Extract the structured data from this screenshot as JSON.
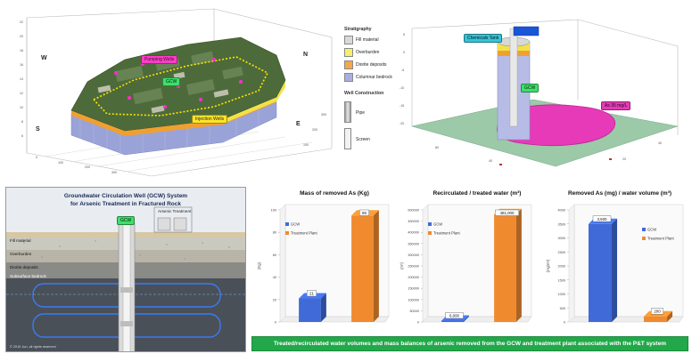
{
  "top_left": {
    "compass": {
      "w": "W",
      "n": "N",
      "s": "S",
      "e": "E"
    },
    "tags": {
      "pumping": "Pumping Wells",
      "gcw": "GCW",
      "injection": "Injection Wells"
    },
    "colors": {
      "surface_green": "#4d6b3a",
      "bedrock": "#9aa3d8",
      "layer_yellow": "#f2e24a",
      "layer_orange": "#f0a030"
    }
  },
  "legend": {
    "stratigraphy_title": "Stratigraphy",
    "strata": [
      {
        "label": "Fill material",
        "color": "#d9d9d9"
      },
      {
        "label": "Overburden",
        "color": "#f6ef6a"
      },
      {
        "label": "Diorite deposits",
        "color": "#f4a64a"
      },
      {
        "label": "Columnar bedrock",
        "color": "#a9aee0"
      }
    ],
    "well_title": "Well Construction",
    "well_items": [
      {
        "label": "Pipe",
        "color": "#c8c8c8"
      },
      {
        "label": "Screen",
        "color": "#f2f2f2"
      }
    ]
  },
  "top_right": {
    "tags": {
      "chemicals": "Chemicals Tank",
      "gcw": "GCW",
      "plume": "As 35 mg/L"
    },
    "colors": {
      "plume": "#e63ab8",
      "ground": "#9cc9a8",
      "cyan": "#35c4d8"
    }
  },
  "bottom_left": {
    "title_line1": "Groundwater Circulation Well (GCW) System",
    "title_line2": "for Arsenic Treatment in Fractured Rock",
    "gcw_tag": "GCW",
    "treatment_tag": "Arsenic Treatment",
    "layers": [
      "Fill material",
      "Overburden",
      "Diorite deposits",
      "Subsurface bedrock"
    ],
    "footer": "© 2019 Jun, all rights reserved"
  },
  "charts": {
    "chart1_title": "Mass of removed As (Kg)",
    "chart2_title": "Recirculated / treated water (m³)",
    "chart3_title": "Removed As (mg) / water volume (m³)"
  },
  "chart_data": [
    {
      "type": "bar",
      "title": "Mass of removed As (Kg)",
      "categories": [
        "GCW",
        "Treatment Plant"
      ],
      "values": [
        21,
        95
      ],
      "value_labels": [
        "21",
        "95"
      ],
      "series_colors": [
        "#3f6ad8",
        "#f08a2e"
      ],
      "legend": [
        "GCW",
        "Treatment Plant"
      ],
      "ylabel": "(Kg)",
      "ylim": [
        0,
        100
      ],
      "yticks": [
        "0",
        "20",
        "40",
        "60",
        "80",
        "100"
      ]
    },
    {
      "type": "bar",
      "title": "Recirculated / treated water (m³)",
      "categories": [
        "GCW",
        "Treatment Plant"
      ],
      "values": [
        6000,
        481000
      ],
      "value_labels": [
        "6,000",
        "481,000"
      ],
      "series_colors": [
        "#3f6ad8",
        "#f08a2e"
      ],
      "legend": [
        "GCW",
        "Treatment Plant"
      ],
      "ylabel": "(m³)",
      "ylim": [
        0,
        500000
      ],
      "yticks": [
        "0",
        "50000",
        "100000",
        "150000",
        "200000",
        "250000",
        "300000",
        "350000",
        "400000",
        "450000",
        "500000"
      ]
    },
    {
      "type": "bar",
      "title": "Removed As (mg) / water volume (m³)",
      "categories": [
        "GCW",
        "Treatment Plant"
      ],
      "values": [
        3500,
        200
      ],
      "value_labels": [
        "3,500",
        "200"
      ],
      "series_colors": [
        "#3f6ad8",
        "#f08a2e"
      ],
      "legend": [
        "GCW",
        "Treatment Plant"
      ],
      "ylabel": "(mg/m³)",
      "ylim": [
        0,
        4000
      ],
      "yticks": [
        "0",
        "500",
        "1000",
        "1500",
        "2000",
        "2500",
        "3000",
        "3500",
        "4000"
      ]
    }
  ],
  "caption": "Treated/recirculated water volumes and mass balances of arsenic removed from the GCW and treatment plant associated with the P&T system"
}
